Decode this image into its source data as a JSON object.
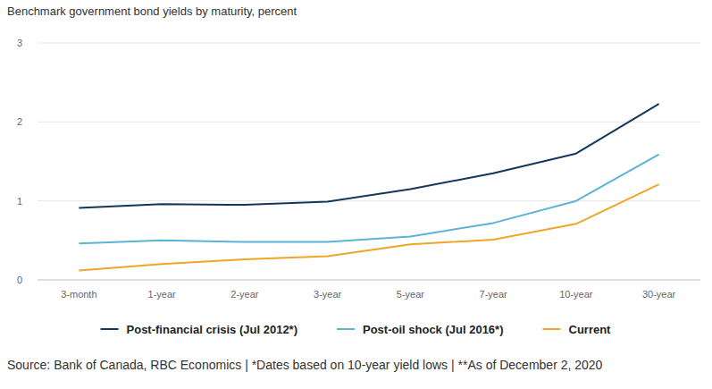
{
  "chart_data": {
    "type": "line",
    "title": "Benchmark government bond yields by maturity, percent",
    "source": "Source: Bank of Canada, RBC Economics | *Dates based on 10-year yield lows | **As of December 2, 2020",
    "categories": [
      "3-month",
      "1-year",
      "2-year",
      "3-year",
      "5-year",
      "7-year",
      "10-year",
      "30-year"
    ],
    "series": [
      {
        "name": "Post-financial crisis (Jul 2012*)",
        "color": "#14365b",
        "values": [
          0.91,
          0.96,
          0.95,
          0.99,
          1.15,
          1.35,
          1.6,
          2.23
        ]
      },
      {
        "name": "Post-oil shock (Jul 2016*)",
        "color": "#5bb3d5",
        "values": [
          0.46,
          0.5,
          0.48,
          0.48,
          0.55,
          0.72,
          1.0,
          1.59
        ]
      },
      {
        "name": "Current",
        "color": "#f2a42a",
        "values": [
          0.12,
          0.2,
          0.26,
          0.3,
          0.45,
          0.51,
          0.71,
          1.21
        ]
      }
    ],
    "ylim": [
      0,
      3
    ],
    "yticks": [
      0,
      1,
      2,
      3
    ],
    "grid": true,
    "legend": "bottom"
  }
}
